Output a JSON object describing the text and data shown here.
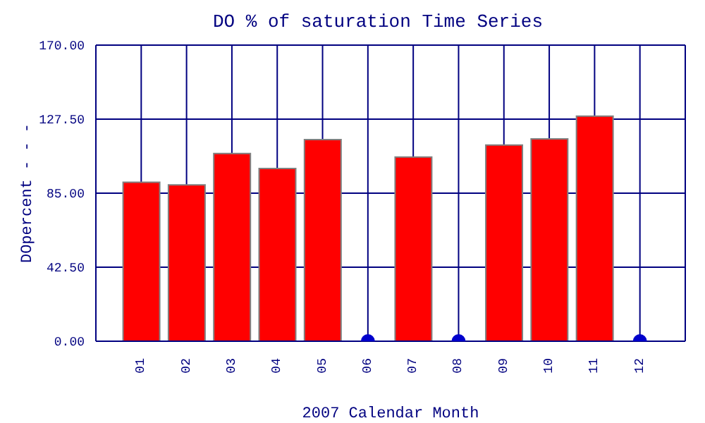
{
  "chart_data": {
    "type": "bar",
    "title": "DO % of saturation Time Series",
    "xlabel": "2007 Calendar Month",
    "ylabel": "DOpercent - - -",
    "categories": [
      "01",
      "02",
      "03",
      "04",
      "05",
      "06",
      "07",
      "08",
      "09",
      "10",
      "11",
      "12"
    ],
    "series": [
      {
        "color": "#ff0000",
        "values": [
          91.3,
          89.8,
          107.8,
          99.2,
          115.8,
          null,
          105.7,
          null,
          112.6,
          116.2,
          129.2,
          null
        ]
      },
      {
        "type": "scatter",
        "color": "#0000cc",
        "values": [
          null,
          null,
          null,
          null,
          null,
          0,
          null,
          0,
          null,
          null,
          null,
          0
        ]
      }
    ],
    "ylim": [
      0,
      170
    ],
    "yticks": [
      {
        "value": 0,
        "label": "0.00"
      },
      {
        "value": 42.5,
        "label": "42.50"
      },
      {
        "value": 85,
        "label": "85.00"
      },
      {
        "value": 127.5,
        "label": "127.50"
      },
      {
        "value": 170,
        "label": "170.00"
      }
    ],
    "grid": true,
    "legend": false
  }
}
